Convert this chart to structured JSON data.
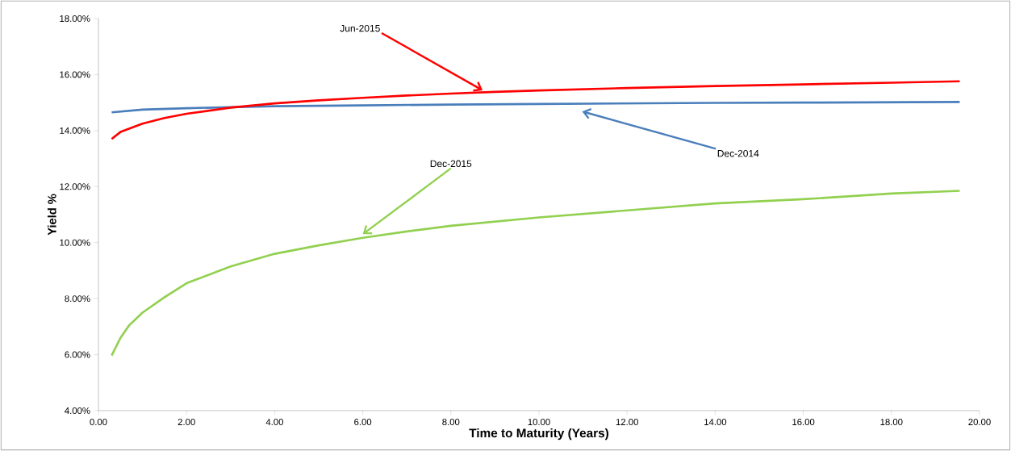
{
  "chart_data": {
    "type": "line",
    "xlabel": "Time to Maturity (Years)",
    "ylabel": "Yield %",
    "xlim": [
      0,
      20
    ],
    "ylim": [
      4,
      18
    ],
    "xticks": [
      {
        "value": 0,
        "label": "0.00"
      },
      {
        "value": 2,
        "label": "2.00"
      },
      {
        "value": 4,
        "label": "4.00"
      },
      {
        "value": 6,
        "label": "6.00"
      },
      {
        "value": 8,
        "label": "8.00"
      },
      {
        "value": 10,
        "label": "10.00"
      },
      {
        "value": 12,
        "label": "12.00"
      },
      {
        "value": 14,
        "label": "14.00"
      },
      {
        "value": 16,
        "label": "16.00"
      },
      {
        "value": 18,
        "label": "18.00"
      },
      {
        "value": 20,
        "label": "20.00"
      }
    ],
    "yticks": [
      {
        "value": 4,
        "label": "4.00%"
      },
      {
        "value": 6,
        "label": "6.00%"
      },
      {
        "value": 8,
        "label": "8.00%"
      },
      {
        "value": 10,
        "label": "10.00%"
      },
      {
        "value": 12,
        "label": "12.00%"
      },
      {
        "value": 14,
        "label": "14.00%"
      },
      {
        "value": 16,
        "label": "16.00%"
      },
      {
        "value": 18,
        "label": "18.00%"
      }
    ],
    "grid": false,
    "legend": false,
    "marker": "none",
    "line_style": "solid",
    "series": [
      {
        "name": "Dec-2014",
        "color": "#4a7ebb",
        "x": [
          0.3,
          1,
          2,
          4,
          6,
          8,
          10,
          12,
          14,
          16,
          19.55
        ],
        "values": [
          14.65,
          14.75,
          14.8,
          14.87,
          14.9,
          14.93,
          14.95,
          14.97,
          14.99,
          15.0,
          15.02
        ]
      },
      {
        "name": "Jun-2015",
        "color": "#ff0000",
        "x": [
          0.3,
          0.5,
          1,
          1.5,
          2,
          3,
          4,
          5,
          6,
          7,
          8,
          9,
          10,
          12,
          14,
          16,
          18,
          19.55
        ],
        "values": [
          13.7,
          13.95,
          14.25,
          14.45,
          14.6,
          14.82,
          14.97,
          15.08,
          15.17,
          15.25,
          15.32,
          15.38,
          15.43,
          15.52,
          15.59,
          15.65,
          15.71,
          15.76
        ]
      },
      {
        "name": "Dec-2015",
        "color": "#92d050",
        "x": [
          0.3,
          0.5,
          0.7,
          1,
          1.5,
          2,
          3,
          4,
          5,
          6,
          7,
          8,
          9,
          10,
          12,
          14,
          16,
          18,
          19.55
        ],
        "values": [
          5.97,
          6.6,
          7.05,
          7.5,
          8.05,
          8.55,
          9.15,
          9.6,
          9.9,
          10.17,
          10.4,
          10.6,
          10.75,
          10.9,
          11.15,
          11.4,
          11.55,
          11.75,
          11.85
        ]
      }
    ]
  }
}
